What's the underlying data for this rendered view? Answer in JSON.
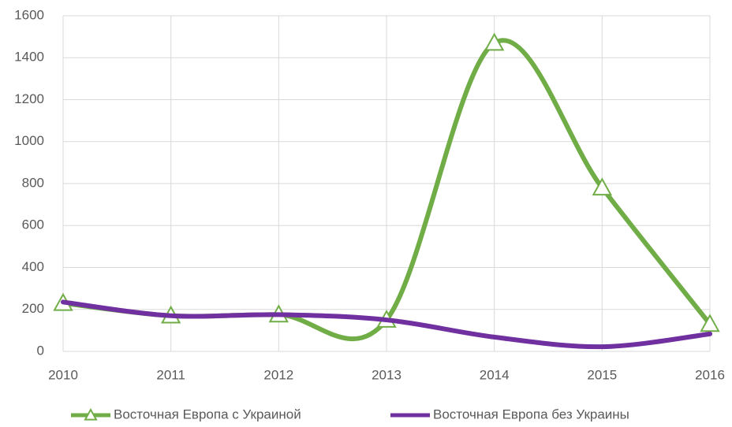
{
  "chart_data": {
    "type": "line",
    "x": [
      2010,
      2011,
      2012,
      2013,
      2014,
      2015,
      2016
    ],
    "series": [
      {
        "name": "Восточная Европа с Украиной",
        "color": "#70ad47",
        "marker": "triangle",
        "values": [
          230,
          170,
          175,
          150,
          1470,
          780,
          130
        ]
      },
      {
        "name": "Восточная Европа без Украины",
        "color": "#7030a0",
        "values": [
          235,
          170,
          175,
          150,
          68,
          22,
          83
        ]
      }
    ],
    "xlim": [
      2010,
      2016
    ],
    "xticks": [
      2010,
      2011,
      2012,
      2013,
      2014,
      2015,
      2016
    ],
    "ylim": [
      0,
      1600
    ],
    "yticks": [
      0,
      200,
      400,
      600,
      800,
      1000,
      1200,
      1400,
      1600
    ],
    "grid": true,
    "smooth": true,
    "legend": "bottom"
  }
}
